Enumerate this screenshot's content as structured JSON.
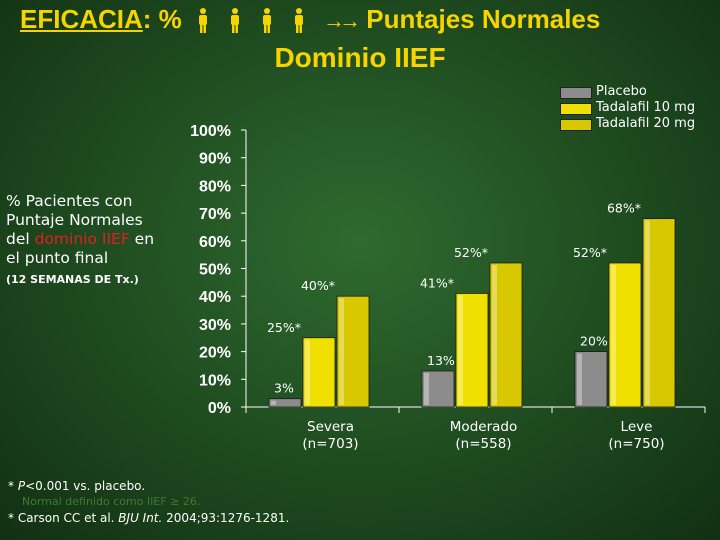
{
  "header": {
    "title_prefix": "EFICACIA",
    "title_colon_pct": ": %",
    "title_arrow": "→",
    "title_suffix": "Puntajes Normales",
    "subtitle": "Dominio IIEF"
  },
  "side_label": {
    "line1": "% Pacientes con Puntaje Normales del ",
    "highlight": "dominio IIEF",
    "line2": " en el punto final",
    "note": "(12 SEMANAS DE Tx.)"
  },
  "colors": {
    "placebo": "#8c8c8c",
    "tadalafil10": "#f0e000",
    "tadalafil20": "#d8c800",
    "title": "#f5d400",
    "highlight": "#e02020"
  },
  "chart_data": {
    "type": "bar",
    "title": "Dominio IIEF",
    "ylabel": "% Pacientes con Puntaje Normales del dominio IIEF en el punto final",
    "ylim": [
      0,
      100
    ],
    "yticks": [
      "0%",
      "10%",
      "20%",
      "30%",
      "40%",
      "50%",
      "60%",
      "70%",
      "80%",
      "90%",
      "100%"
    ],
    "legend_position": "top-right",
    "categories": [
      "Severa\n(n=703)",
      "Moderado\n(n=558)",
      "Leve\n(n=750)"
    ],
    "category_lines": [
      [
        "Severa",
        "(n=703)"
      ],
      [
        "Moderado",
        "(n=558)"
      ],
      [
        "Leve",
        "(n=750)"
      ]
    ],
    "series": [
      {
        "name": "Placebo",
        "values": [
          3,
          13,
          20
        ],
        "labels": [
          "3%",
          "13%",
          "20%"
        ]
      },
      {
        "name": "Tadalafil 10 mg",
        "values": [
          25,
          41,
          52
        ],
        "labels": [
          "25%*",
          "41%*",
          "52%*"
        ]
      },
      {
        "name": "Tadalafil 20 mg",
        "values": [
          40,
          52,
          68
        ],
        "labels": [
          "40%*",
          "52%*",
          "68%*"
        ]
      }
    ]
  },
  "footnotes": {
    "line1_prefix": "* ",
    "line1_p": "P",
    "line1_rest": "<0.001 vs. placebo.",
    "line2": "Normal definido como IIEF ≥ 26.",
    "line3_prefix": "* Carson CC et al. ",
    "line3_journal": "BJU Int.",
    "line3_rest": " 2004;93:1276-1281."
  }
}
